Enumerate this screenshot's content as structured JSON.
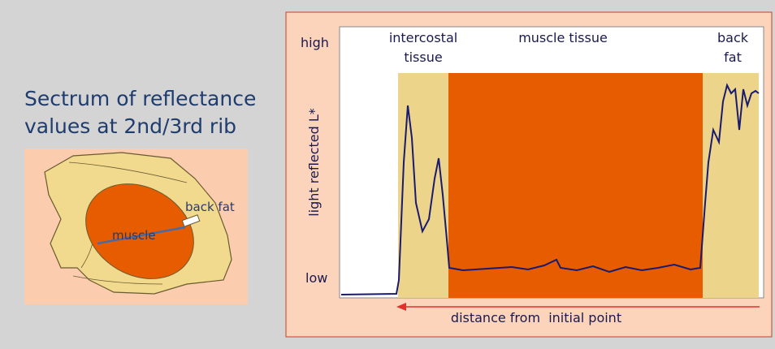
{
  "title": {
    "lines": [
      "Sectrum of reflectance",
      "values at 2nd/3rd rib"
    ]
  },
  "illustration": {
    "labels": {
      "back_fat": "back fat",
      "muscle": "muscle"
    }
  },
  "profile": {
    "y_axis_label": "light reflected L*",
    "y_high": "high",
    "y_low": "low",
    "regions": [
      {
        "lines": [
          "intercostal",
          "tissue"
        ]
      },
      {
        "lines": [
          "muscle tissue"
        ]
      },
      {
        "lines": [
          "back",
          "fat"
        ]
      }
    ],
    "x_axis_label": "distance from  initial point"
  }
}
